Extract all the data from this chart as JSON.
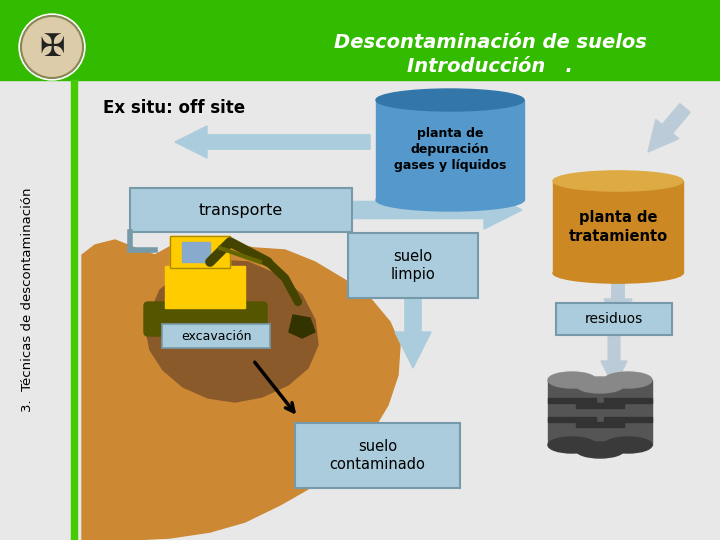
{
  "title_line1": "Descontaminación de suelos",
  "title_line2": "Introducción   .",
  "title_bg_color": "#33bb00",
  "title_text_color": "#ffffff",
  "sidebar_text": "3.  Técnicas de descontaminación",
  "sidebar_bar_color": "#44cc00",
  "main_bg_color": "#e8e8e8",
  "ex_situ_text": "Ex situ: off site",
  "planta_dep_text": "planta de\ndepuración\ngases y líquidos",
  "planta_dep_body": "#5599cc",
  "planta_dep_top": "#3377aa",
  "planta_trat_text": "planta de\ntratamiento",
  "planta_trat_body": "#cc8822",
  "planta_trat_top": "#ddaa44",
  "transporte_text": "transporte",
  "box_fill": "#aaccdd",
  "box_edge": "#779aaa",
  "suelo_limpio_text": "suelo\nlimpio",
  "suelo_contaminado_text": "suelo\ncontaminado",
  "excavacion_text": "excavación",
  "residuos_text": "residuos",
  "arrow_color": "#aaccdd",
  "arrow_light": "#bbccd8",
  "soil_orange": "#cc8833",
  "soil_dark": "#8B5A2B",
  "excavator_yellow": "#ffcc00",
  "excavator_dark": "#cc9900",
  "barrel_body": "#555555",
  "barrel_top": "#888888",
  "barrel_band": "#333333"
}
